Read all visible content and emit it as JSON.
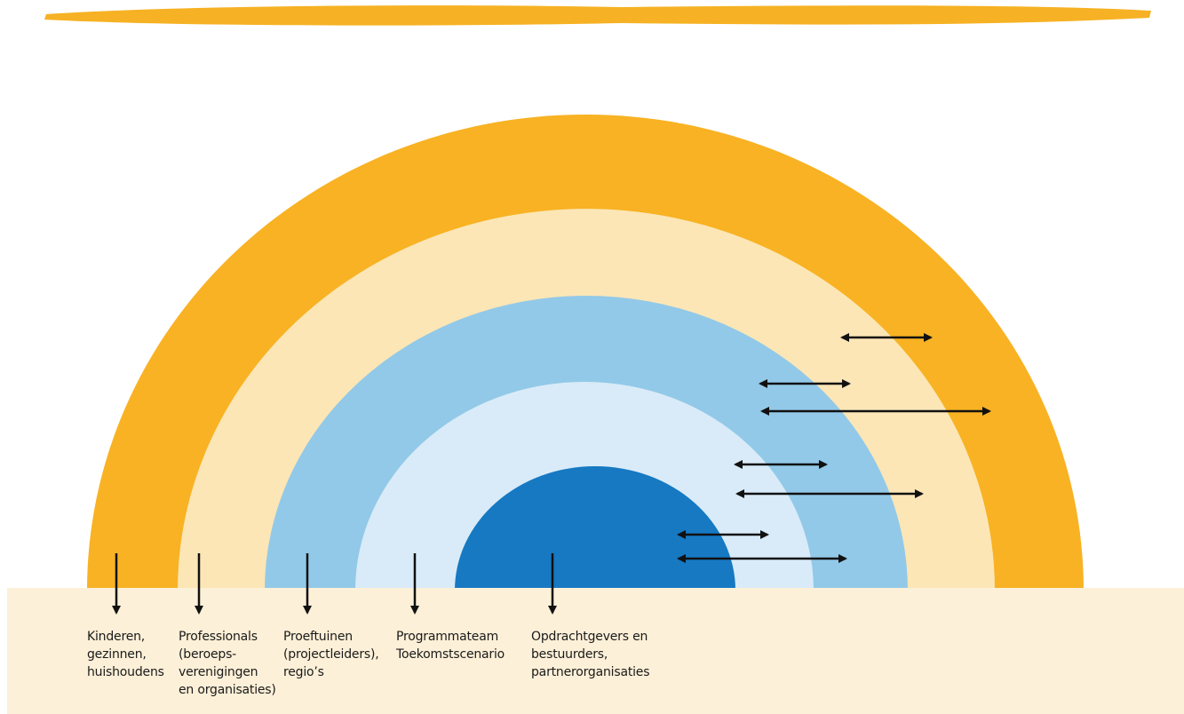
{
  "colors": {
    "top_stroke": "#f6b224",
    "band_outer": "#f8b223",
    "band_cream": "#fce6b6",
    "band_light_blue": "#92c9e8",
    "band_pale_blue": "#d9ebf8",
    "band_core_blue": "#1679c2",
    "ground": "#fdf0d8",
    "arrow": "#111111"
  },
  "labels": [
    {
      "key": "kinderen",
      "text": "Kinderen,\ngezinnen,\nhuishoudens"
    },
    {
      "key": "professionals",
      "text": "Professionals\n(beroeps-\nverenigingen\nen organisaties)"
    },
    {
      "key": "proeftuinen",
      "text": "Proeftuinen\n(projectleiders),\nregio’s"
    },
    {
      "key": "programmateam",
      "text": "Programmateam\nToekomstscenario"
    },
    {
      "key": "opdrachtgevers",
      "text": "Opdrachtgevers en\nbestuurders,\npartnerorganisaties"
    }
  ]
}
